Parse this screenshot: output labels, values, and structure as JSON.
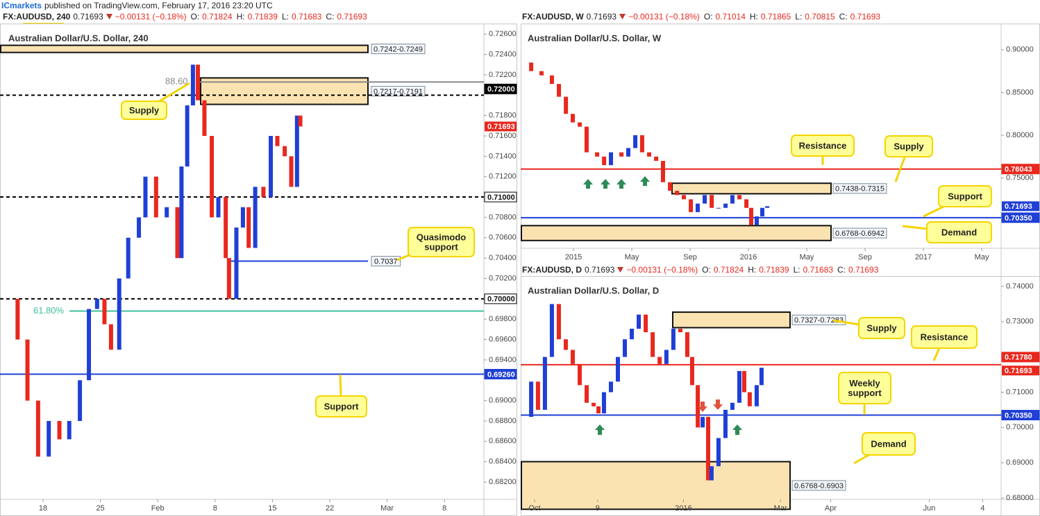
{
  "publisher": "ICmarkets",
  "published": "published on TradingView.com, February 17, 2016 23:20 UTC",
  "chart_data": [
    {
      "type": "line",
      "title": "Australian Dollar/U.S. Dollar, 240",
      "header": {
        "symbol": "FX:AUDUSD, 240",
        "last": "0.71693",
        "change": "−0.00131 (−0.18%)",
        "ohlc": [
          {
            "key": "O:",
            "value": "0.71824"
          },
          {
            "key": "H:",
            "value": "0.71839"
          },
          {
            "key": "L:",
            "value": "0.71683"
          },
          {
            "key": "C:",
            "value": "0.71693"
          }
        ]
      },
      "x": [
        -4.4,
        -3.1,
        -1.9,
        -0.6,
        0.7,
        2.0,
        3.2,
        4.5,
        5.6,
        6.6,
        7.5,
        8.3,
        9.3,
        10.4,
        11.7,
        12.5,
        13.8,
        15.1,
        16.4,
        16.9,
        17.6,
        18.3,
        18.9,
        19.7,
        20.6,
        21.4,
        22.3,
        22.7,
        23.6,
        24.4,
        25.1,
        25.9,
        26.9,
        27.8,
        28.6,
        29.5,
        30.3,
        31.0,
        31.4
      ],
      "values": [
        0.7,
        0.696,
        0.69,
        0.6845,
        0.688,
        0.6862,
        0.688,
        0.692,
        0.699,
        0.7,
        0.6975,
        0.695,
        0.702,
        0.706,
        0.708,
        0.712,
        0.708,
        0.709,
        0.704,
        0.713,
        0.719,
        0.723,
        0.7195,
        0.716,
        0.708,
        0.71,
        0.704,
        0.7,
        0.707,
        0.709,
        0.705,
        0.711,
        0.71,
        0.716,
        0.715,
        0.714,
        0.711,
        0.718,
        0.71693
      ],
      "up_color": "#1f3fd6",
      "down_color": "#e8281e",
      "xlim": [
        -5.25,
        53.81
      ],
      "xticks": [
        {
          "value": 0,
          "label": "18"
        },
        {
          "value": 7,
          "label": "25"
        },
        {
          "value": 14,
          "label": "Feb"
        },
        {
          "value": 21,
          "label": "8"
        },
        {
          "value": 28,
          "label": "15"
        },
        {
          "value": 35,
          "label": "22"
        },
        {
          "value": 42,
          "label": "Mar"
        },
        {
          "value": 49,
          "label": "8"
        }
      ],
      "ylim": [
        0.6803,
        0.7269
      ],
      "yticks": [
        {
          "value": 0.682,
          "label": "0.68200"
        },
        {
          "value": 0.684,
          "label": "0.68400"
        },
        {
          "value": 0.686,
          "label": "0.68600"
        },
        {
          "value": 0.688,
          "label": "0.68800"
        },
        {
          "value": 0.69,
          "label": "0.69000"
        },
        {
          "value": 0.694,
          "label": "0.69400"
        },
        {
          "value": 0.696,
          "label": "0.69600"
        },
        {
          "value": 0.698,
          "label": "0.69800"
        },
        {
          "value": 0.702,
          "label": "0.70200"
        },
        {
          "value": 0.704,
          "label": "0.70400"
        },
        {
          "value": 0.706,
          "label": "0.70600"
        },
        {
          "value": 0.708,
          "label": "0.70800"
        },
        {
          "value": 0.712,
          "label": "0.71200"
        },
        {
          "value": 0.714,
          "label": "0.71400"
        },
        {
          "value": 0.716,
          "label": "0.71600"
        },
        {
          "value": 0.718,
          "label": "0.71800"
        },
        {
          "value": 0.722,
          "label": "0.72200"
        },
        {
          "value": 0.724,
          "label": "0.72400"
        },
        {
          "value": 0.726,
          "label": "0.72600"
        }
      ],
      "zones": [
        {
          "label": "0.7242-0.7249",
          "top": 0.7249,
          "bottom": 0.7242
        },
        {
          "label": "0.7217-0.7191",
          "top": 0.7217,
          "bottom": 0.7191
        }
      ],
      "levels": [
        {
          "value": 0.72,
          "label": "0.72000",
          "color": "#000000",
          "dashed": true
        },
        {
          "value": 0.71,
          "label": "0.71000",
          "color": "#000000",
          "dashed": true,
          "outline": true
        },
        {
          "value": 0.7,
          "label": "0.70000",
          "color": "#000000",
          "dashed": true,
          "outline": true
        },
        {
          "value": 0.6926,
          "label": "0.69260",
          "color": "#1f3fd6"
        },
        {
          "value": 0.7037,
          "label": "0.7037",
          "color": "#1f3fd6",
          "outline": true
        }
      ],
      "last_price": {
        "value": 0.71693,
        "label": "0.71693",
        "color": "#e8281e"
      },
      "fib": [
        {
          "label": "88.60",
          "price": 0.7213,
          "color": "#888888"
        },
        {
          "label": "61.80%",
          "price": 0.6988,
          "color": "#3cbf9c"
        }
      ],
      "annotations": [
        {
          "text": [
            "Supply"
          ]
        },
        {
          "text": [
            "Quasimodo",
            "support"
          ]
        },
        {
          "text": [
            "Support"
          ]
        }
      ]
    },
    {
      "type": "line",
      "title": "Australian Dollar/U.S. Dollar, W",
      "header": {
        "symbol": "FX:AUDUSD, W",
        "last": "0.71693",
        "change": "−0.00131 (−0.18%)",
        "ohlc": [
          {
            "key": "O:",
            "value": "0.71014"
          },
          {
            "key": "H:",
            "value": "0.71865"
          },
          {
            "key": "L:",
            "value": "0.70815"
          },
          {
            "key": "C:",
            "value": "0.71693"
          }
        ]
      },
      "x": [
        -3.38,
        -2.9,
        -2.19,
        -1.48,
        -1.0,
        -0.52,
        -0.05,
        0.43,
        0.9,
        1.62,
        2.1,
        2.57,
        3.29,
        3.76,
        4.24,
        4.71,
        5.19,
        5.67,
        6.14,
        6.62,
        7.1,
        7.57,
        8.05,
        8.52,
        9.0,
        9.48,
        9.95,
        10.43,
        10.9,
        11.38,
        11.86,
        12.19,
        12.57,
        12.95,
        13.29
      ],
      "values": [
        0.885,
        0.875,
        0.87,
        0.86,
        0.845,
        0.825,
        0.815,
        0.81,
        0.78,
        0.775,
        0.765,
        0.78,
        0.775,
        0.785,
        0.8,
        0.78,
        0.775,
        0.77,
        0.745,
        0.735,
        0.73,
        0.725,
        0.71,
        0.72,
        0.73,
        0.715,
        0.715,
        0.72,
        0.73,
        0.725,
        0.715,
        0.695,
        0.705,
        0.715,
        0.71693
      ],
      "up_color": "#1f3fd6",
      "down_color": "#e8281e",
      "xlim": [
        -3.62,
        29.33
      ],
      "xticks": [
        {
          "value": 0,
          "label": "2015"
        },
        {
          "value": 4,
          "label": "May"
        },
        {
          "value": 8,
          "label": "Sep"
        },
        {
          "value": 12,
          "label": "2016"
        },
        {
          "value": 16,
          "label": "May"
        },
        {
          "value": 20,
          "label": "Sep"
        },
        {
          "value": 24,
          "label": "2017"
        },
        {
          "value": 28,
          "label": "May"
        }
      ],
      "ylim": [
        0.6677,
        0.929
      ],
      "yticks": [
        {
          "value": 0.75,
          "label": "0.75000"
        },
        {
          "value": 0.8,
          "label": "0.80000"
        },
        {
          "value": 0.85,
          "label": "0.85000"
        },
        {
          "value": 0.9,
          "label": "0.90000"
        }
      ],
      "zones": [
        {
          "label": "0.7438-0.7315",
          "top": 0.7438,
          "bottom": 0.7315
        },
        {
          "label": "0.6768-0.6942",
          "top": 0.6942,
          "bottom": 0.6768
        }
      ],
      "levels": [
        {
          "value": 0.76043,
          "label": "0.76043",
          "color": "#e8281e"
        },
        {
          "value": 0.7035,
          "label": "0.70350",
          "color": "#1f3fd6"
        }
      ],
      "last_price": {
        "value": 0.71693,
        "label": "0.71693",
        "color": "#1f3fd6"
      },
      "fib": [],
      "annotations": [
        {
          "text": [
            "Resistance"
          ]
        },
        {
          "text": [
            "Supply"
          ]
        },
        {
          "text": [
            "Support"
          ]
        },
        {
          "text": [
            "Demand"
          ]
        }
      ]
    },
    {
      "type": "line",
      "title": "Australian Dollar/U.S. Dollar, D",
      "header": {
        "symbol": "FX:AUDUSD, D",
        "last": "0.71693",
        "change": "−0.00131 (−0.18%)",
        "ohlc": [
          {
            "key": "O:",
            "value": "0.71824"
          },
          {
            "key": "H:",
            "value": "0.71839"
          },
          {
            "key": "L:",
            "value": "0.71683"
          },
          {
            "key": "C:",
            "value": "0.71693"
          }
        ]
      },
      "x": [
        -6.4,
        -2.1,
        2.1,
        6.4,
        10.7,
        15.0,
        19.3,
        23.6,
        27.9,
        32.2,
        36.5,
        39.5,
        42.9,
        47.2,
        51.5,
        55.8,
        60.1,
        64.4,
        68.7,
        73.0,
        77.3,
        81.5,
        85.8,
        90.1,
        94.4,
        97.4,
        100.9,
        103.9,
        107.3,
        109.4,
        113.7,
        118.0,
        122.3,
        126.6,
        129.6,
        133.0,
        137.3,
        140.3
      ],
      "values": [
        0.703,
        0.713,
        0.705,
        0.72,
        0.735,
        0.725,
        0.722,
        0.718,
        0.712,
        0.707,
        0.706,
        0.704,
        0.71,
        0.713,
        0.72,
        0.725,
        0.728,
        0.732,
        0.727,
        0.72,
        0.718,
        0.722,
        0.728,
        0.727,
        0.72,
        0.712,
        0.7,
        0.703,
        0.685,
        0.689,
        0.697,
        0.705,
        0.707,
        0.716,
        0.71,
        0.706,
        0.712,
        0.71693
      ],
      "up_color": "#1f3fd6",
      "down_color": "#e8281e",
      "xlim": [
        -8.58,
        288.41
      ],
      "xticks": [
        {
          "value": 0,
          "label": "Oct"
        },
        {
          "value": 39,
          "label": "9"
        },
        {
          "value": 92,
          "label": "2016"
        },
        {
          "value": 152,
          "label": "Mar"
        },
        {
          "value": 183,
          "label": "Apr"
        },
        {
          "value": 244,
          "label": "Jun"
        },
        {
          "value": 277,
          "label": "4"
        }
      ],
      "ylim": [
        0.67961,
        0.74255
      ],
      "yticks": [
        {
          "value": 0.68,
          "label": "0.68000"
        },
        {
          "value": 0.69,
          "label": "0.69000"
        },
        {
          "value": 0.7,
          "label": "0.70000"
        },
        {
          "value": 0.71,
          "label": "0.71000"
        },
        {
          "value": 0.73,
          "label": "0.73000"
        },
        {
          "value": 0.74,
          "label": "0.74000"
        }
      ],
      "zones": [
        {
          "label": "0.7327-0.7283",
          "top": 0.7327,
          "bottom": 0.7283
        },
        {
          "label": "0.6768-0.6903",
          "top": 0.6903,
          "bottom": 0.6768
        }
      ],
      "levels": [
        {
          "value": 0.7178,
          "label": "0.71780",
          "color": "#e8281e"
        },
        {
          "value": 0.7035,
          "label": "0.70350",
          "color": "#1f3fd6"
        }
      ],
      "last_price": {
        "value": 0.71693,
        "label": "0.71693",
        "color": "#e8281e"
      },
      "fib": [],
      "annotations": [
        {
          "text": [
            "Supply"
          ]
        },
        {
          "text": [
            "Resistance"
          ]
        },
        {
          "text": [
            "Weekly",
            "support"
          ]
        },
        {
          "text": [
            "Demand"
          ]
        }
      ]
    }
  ]
}
